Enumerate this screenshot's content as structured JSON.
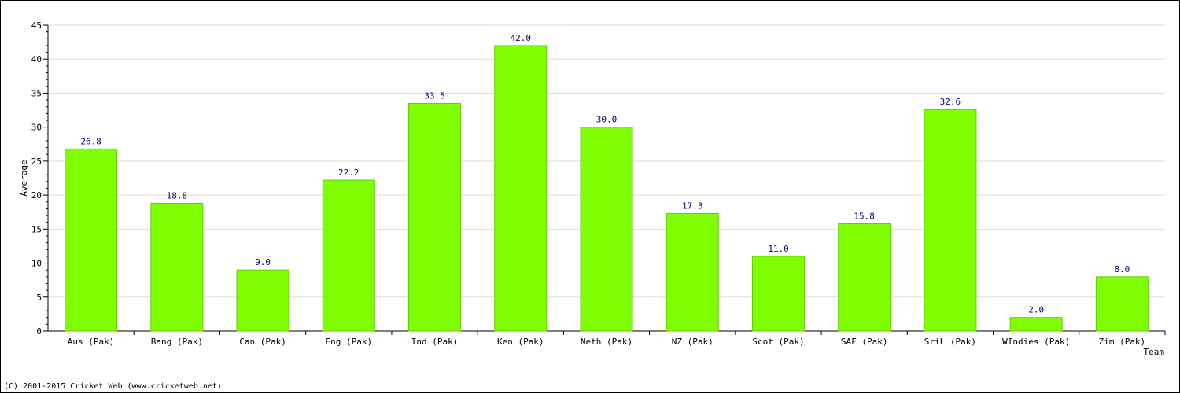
{
  "chart_data": {
    "type": "bar",
    "categories": [
      "Aus (Pak)",
      "Bang (Pak)",
      "Can (Pak)",
      "Eng (Pak)",
      "Ind (Pak)",
      "Ken (Pak)",
      "Neth (Pak)",
      "NZ (Pak)",
      "Scot (Pak)",
      "SAF (Pak)",
      "SriL (Pak)",
      "WIndies (Pak)",
      "Zim (Pak)"
    ],
    "values": [
      26.8,
      18.8,
      9.0,
      22.2,
      33.5,
      42.0,
      30.0,
      17.3,
      11.0,
      15.8,
      32.6,
      2.0,
      8.0
    ],
    "value_labels": [
      "26.8",
      "18.8",
      "9.0",
      "22.2",
      "33.5",
      "42.0",
      "30.0",
      "17.3",
      "11.0",
      "15.8",
      "32.6",
      "2.0",
      "8.0"
    ],
    "xlabel": "Team",
    "ylabel": "Average",
    "ylim": [
      0,
      45
    ],
    "yticks": [
      0,
      5,
      10,
      15,
      20,
      25,
      30,
      35,
      40,
      45
    ],
    "grid": true,
    "colors": {
      "bar": "#80ff00",
      "bar_edge": "#66cc00",
      "data_label": "#000080",
      "grid": "#dddddd"
    }
  },
  "footer": {
    "copyright": "(C) 2001-2015 Cricket Web (www.cricketweb.net)"
  }
}
